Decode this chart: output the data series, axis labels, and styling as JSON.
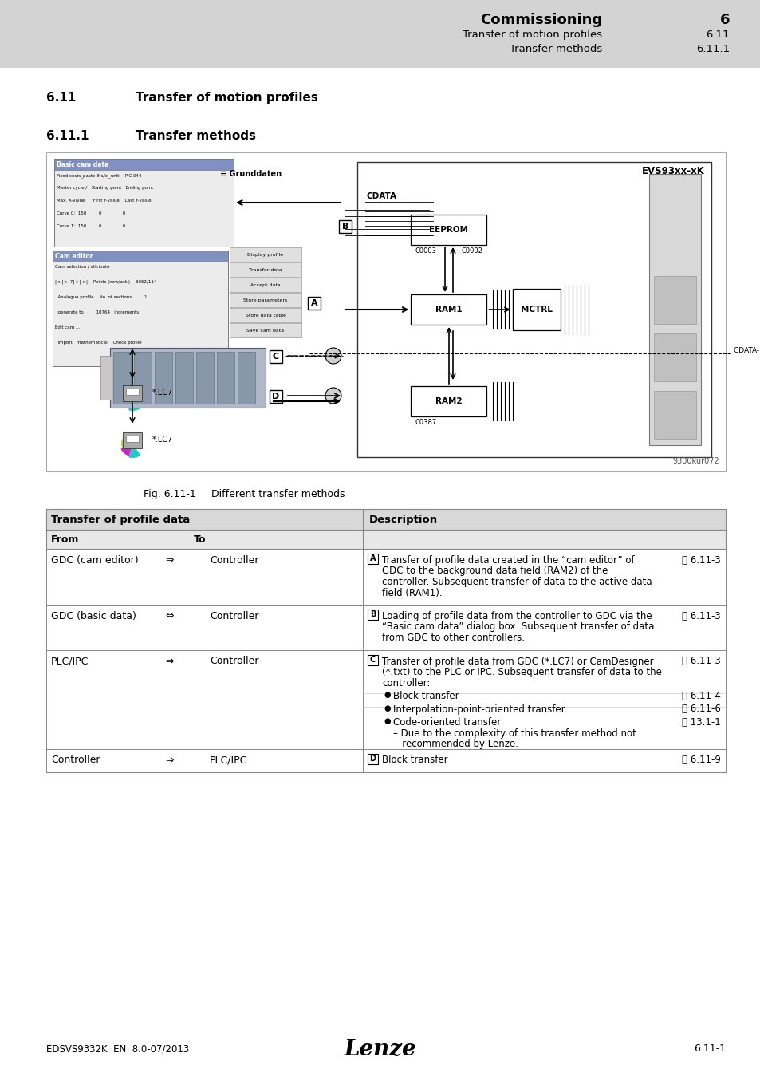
{
  "page_bg": "#ffffff",
  "header_bg": "#d3d3d3",
  "header_title": "Commissioning",
  "header_num": "6",
  "header_sub1": "Transfer of motion profiles",
  "header_sub1_num": "6.11",
  "header_sub2": "Transfer methods",
  "header_sub2_num": "6.11.1",
  "section_num": "6.11",
  "section_text": "Transfer of motion profiles",
  "subsection_num": "6.11.1",
  "subsection_text": "Transfer methods",
  "fig_caption": "Fig. 6.11-1",
  "fig_caption2": "Different transfer methods",
  "fig_ref": "9300kur072",
  "tbl_hdr1": "Transfer of profile data",
  "tbl_hdr2": "Description",
  "tbl_from": "From",
  "tbl_to": "To",
  "rows": [
    {
      "from": "GDC (cam editor)",
      "arrow": "⇒",
      "to": "Controller",
      "label": "A",
      "desc_lines": [
        "Transfer of profile data created in the “cam editor” of",
        "GDC to the background data field (RAM2) of the",
        "controller. Subsequent transfer of data to the active data",
        "field (RAM1)."
      ],
      "ref": "⌹ 6.11-3",
      "subs": []
    },
    {
      "from": "GDC (basic data)",
      "arrow": "⇔",
      "to": "Controller",
      "label": "B",
      "desc_lines": [
        "Loading of profile data from the controller to GDC via the",
        "“Basic cam data” dialog box. Subsequent transfer of data",
        "from GDC to other controllers."
      ],
      "ref": "⌹ 6.11-3",
      "subs": []
    },
    {
      "from": "PLC/IPC",
      "arrow": "⇒",
      "to": "Controller",
      "label": "C",
      "desc_lines": [
        "Transfer of profile data from GDC (*.LC7) or CamDesigner",
        "(*.txt) to the PLC or IPC. Subsequent transfer of data to the",
        "controller:"
      ],
      "ref": "⌹ 6.11-3",
      "subs": [
        {
          "text": "Block transfer",
          "ref": "⌹ 6.11-4",
          "indent": false
        },
        {
          "text": "Interpolation-point-oriented transfer",
          "ref": "⌹ 6.11-6",
          "indent": false
        },
        {
          "text": "Code-oriented transfer",
          "ref": "⌹ 13.1-1",
          "indent": false,
          "subtext": "– Due to the complexity of this transfer method not\n   recommended by Lenze."
        }
      ]
    },
    {
      "from": "Controller",
      "arrow": "⇒",
      "to": "PLC/IPC",
      "label": "D",
      "desc_lines": [
        "Block transfer"
      ],
      "ref": "⌹ 6.11-9",
      "subs": []
    }
  ],
  "footer_left": "EDSVS9332K  EN  8.0-07/2013",
  "footer_center": "Lenze",
  "footer_right": "6.11-1"
}
